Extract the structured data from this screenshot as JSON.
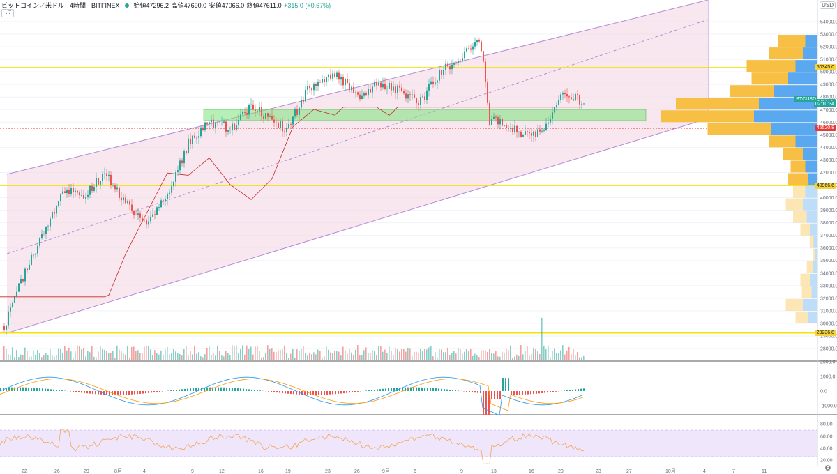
{
  "header": {
    "symbol_title": "ビットコイン／米ドル · 4時間 · BITFINEX",
    "open": "始値47296.2",
    "high": "高値47690.0",
    "low": "安値47066.0",
    "close": "終値47611.0",
    "change": "+315.0 (+0.67%)",
    "collapse_label": "7",
    "currency": "USD"
  },
  "price_axis": {
    "ticks": [
      "54000.0",
      "53000.0",
      "52000.0",
      "51000.0",
      "50000.0",
      "49000.0",
      "48000.0",
      "47000.0",
      "46000.0",
      "45000.0",
      "44000.0",
      "43000.0",
      "42000.0",
      "41000.0",
      "40000.0",
      "39000.0",
      "38000.0",
      "37000.0",
      "36000.0",
      "35000.0",
      "34000.0",
      "33000.0",
      "32000.0",
      "31000.0",
      "30000.0",
      "29000.0",
      "28000.0"
    ],
    "tags": [
      {
        "label": "50345.0",
        "bg": "#f4d23a",
        "fg": "#131722",
        "price": 50345
      },
      {
        "label": "BTCUSD",
        "bg": "#26a69a",
        "fg": "#ffffff",
        "price": 47811
      },
      {
        "label": "47611.0",
        "bg": "#26a69a",
        "fg": "#ffffff",
        "price": 47611
      },
      {
        "label": "02:10:34",
        "bg": "#26a69a",
        "fg": "#ffffff",
        "price": 47411
      },
      {
        "label": "45520.8",
        "bg": "#e53935",
        "fg": "#ffffff",
        "price": 45520.8
      },
      {
        "label": "40966.6",
        "bg": "#f4d23a",
        "fg": "#131722",
        "price": 40966.6
      },
      {
        "label": "29236.8",
        "bg": "#f4d23a",
        "fg": "#131722",
        "price": 29236.8
      }
    ]
  },
  "macd_axis": {
    "ticks": [
      "2000.0",
      "1000.0",
      "0.0",
      "-1000.0"
    ]
  },
  "rsi_axis": {
    "ticks": [
      "80.00",
      "60.00",
      "40.00",
      "20.00"
    ]
  },
  "time_axis": {
    "ticks": [
      "22",
      "26",
      "29",
      "8月",
      "4",
      "9",
      "12",
      "16",
      "19",
      "23",
      "26",
      "9月",
      "6",
      "9",
      "13",
      "16",
      "20",
      "23",
      "27",
      "10月",
      "4",
      "7",
      "11"
    ]
  },
  "horizontal_lines": [
    50345.0,
    40966.6,
    29236.8
  ],
  "red_dotted_line": 45520.8,
  "colors": {
    "up": "#26a69a",
    "down": "#ef5350",
    "hline": "#f4e400",
    "channel": "#b58ad8",
    "channel_fill": "#f4d7e3",
    "zone": "#7be37b",
    "volume_profile_up": "#5aa9f0",
    "volume_profile_down": "#f7c044",
    "rsi_band": "#e8dcfb",
    "rsi_line": "#f2a65a",
    "macd_line": "#2196f3",
    "signal_line": "#ff9800"
  }
}
